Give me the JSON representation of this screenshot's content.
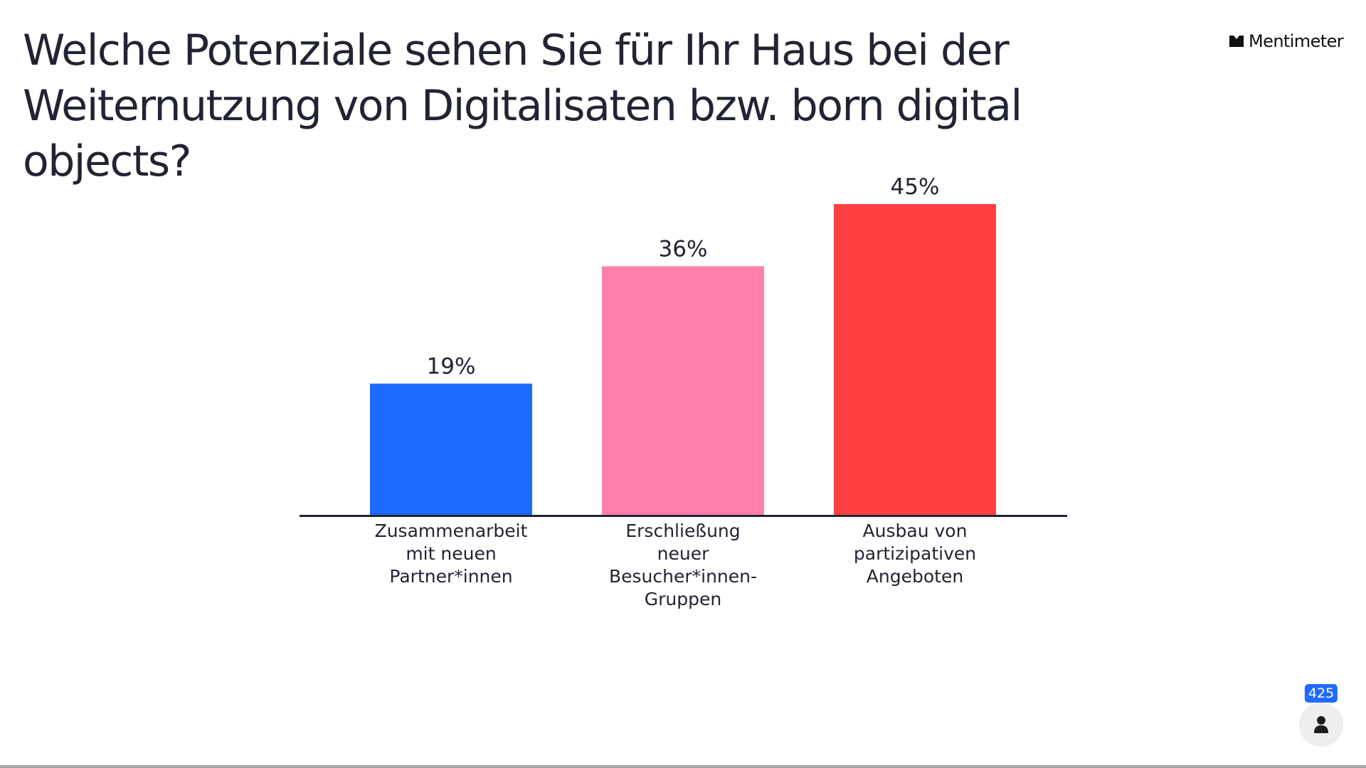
{
  "title": "Welche Potenziale sehen Sie für Ihr Haus bei der Weiternutzung von Digitalisaten bzw. born digital objects?",
  "brand": {
    "name": "Mentimeter",
    "icon": "mentimeter-logo-icon"
  },
  "participants": {
    "count": "425",
    "icon": "person-icon"
  },
  "chart_data": {
    "type": "bar",
    "title": "Welche Potenziale sehen Sie für Ihr Haus bei der Weiternutzung von Digitalisaten bzw. born digital objects?",
    "categories": [
      [
        "Zusammenarbeit",
        "mit neuen",
        "Partner*innen"
      ],
      [
        "Erschließung",
        "neuer",
        "Besucher*innen-",
        "Gruppen"
      ],
      [
        "Ausbau von",
        "partizipativen",
        "Angeboten"
      ]
    ],
    "values": [
      19,
      36,
      45
    ],
    "value_labels": [
      "19%",
      "36%",
      "45%"
    ],
    "unit": "%",
    "colors": [
      "#1c6bff",
      "#ff80ab",
      "#ff4040"
    ],
    "ylim": [
      0,
      45
    ],
    "grid": false,
    "legend": "none"
  }
}
